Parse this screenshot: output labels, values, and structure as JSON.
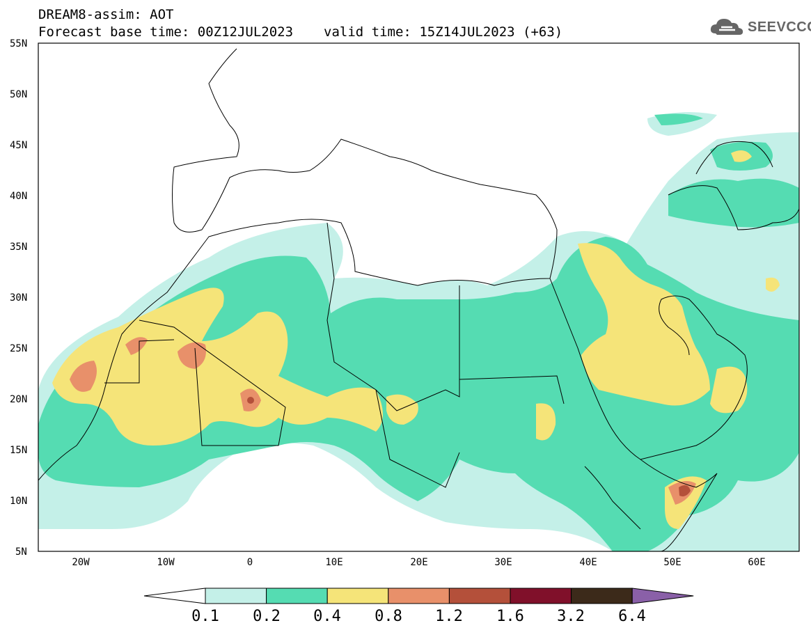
{
  "header": {
    "title": "DREAM8-assim: AOT",
    "base_time": "Forecast base time: 00Z12JUL2023",
    "valid_time": "valid time: 15Z14JUL2023 (+63)"
  },
  "logo": {
    "text": "SEEVCCC",
    "icon": "cloud-icon",
    "color": "#666666"
  },
  "map": {
    "lon_range": [
      -25,
      65
    ],
    "lat_range": [
      5,
      55
    ],
    "lat_ticks": [
      "55N",
      "50N",
      "45N",
      "40N",
      "35N",
      "30N",
      "25N",
      "20N",
      "15N",
      "10N",
      "5N"
    ],
    "lon_ticks": [
      "20W",
      "10W",
      "0",
      "10E",
      "20E",
      "30E",
      "40E",
      "50E",
      "60E"
    ]
  },
  "colorbar": {
    "levels": [
      "0.1",
      "0.2",
      "0.4",
      "0.8",
      "1.2",
      "1.6",
      "3.2",
      "6.4"
    ],
    "colors": [
      "#ffffff",
      "#c4f0e8",
      "#55dcb2",
      "#f5e479",
      "#e8906a",
      "#b4503a",
      "#80102a",
      "#3c2a1a",
      "#8a60a8"
    ]
  }
}
